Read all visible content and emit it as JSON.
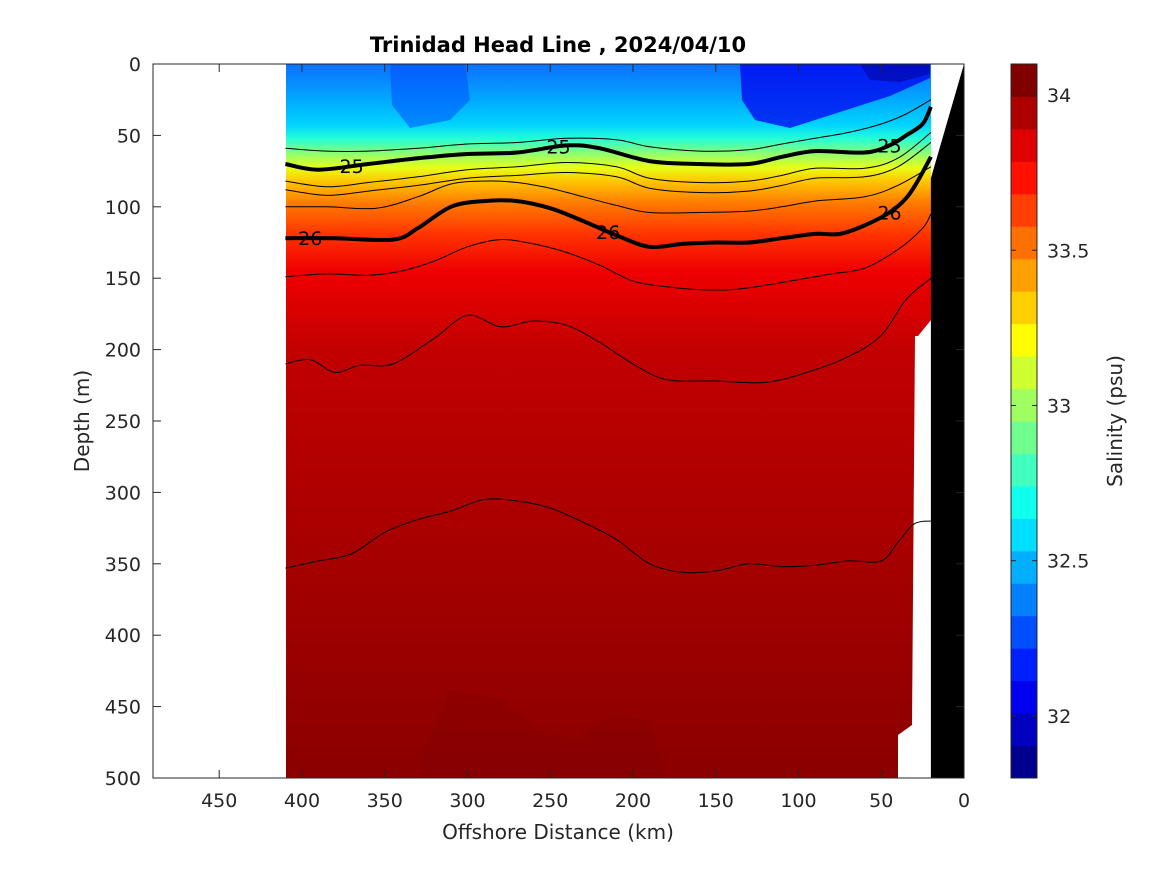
{
  "chart_data": {
    "type": "contour",
    "title": "Trinidad Head Line , 2024/04/10",
    "xlabel": "Offshore Distance (km)",
    "ylabel": "Depth (m)",
    "xlim": [
      490,
      0
    ],
    "ylim": [
      0,
      500
    ],
    "y_reversed": true,
    "xticks": [
      "450",
      "400",
      "350",
      "300",
      "250",
      "200",
      "150",
      "100",
      "50",
      "0"
    ],
    "yticks": [
      "0",
      "50",
      "100",
      "150",
      "200",
      "250",
      "300",
      "350",
      "400",
      "450",
      "500"
    ],
    "data_extent_km": [
      410,
      20
    ],
    "colorbar": {
      "label": "Salinity (psu)",
      "clim": [
        31.8,
        34.1
      ],
      "ticks": [
        "32",
        "32.5",
        "33",
        "33.5",
        "34"
      ]
    },
    "density_contours": [
      {
        "label": "25",
        "label_positions_km": [
          370,
          245,
          45
        ],
        "points": [
          [
            410,
            70
          ],
          [
            390,
            74
          ],
          [
            360,
            70
          ],
          [
            330,
            66
          ],
          [
            300,
            63
          ],
          [
            270,
            62
          ],
          [
            240,
            57
          ],
          [
            220,
            59
          ],
          [
            190,
            68
          ],
          [
            160,
            70
          ],
          [
            130,
            70
          ],
          [
            110,
            65
          ],
          [
            90,
            61
          ],
          [
            60,
            62
          ],
          [
            45,
            57
          ],
          [
            35,
            50
          ],
          [
            25,
            42
          ],
          [
            20,
            30
          ]
        ]
      },
      {
        "label": "26",
        "label_positions_km": [
          395,
          215,
          45
        ],
        "points": [
          [
            410,
            122
          ],
          [
            380,
            122
          ],
          [
            345,
            123
          ],
          [
            330,
            115
          ],
          [
            310,
            100
          ],
          [
            290,
            96
          ],
          [
            270,
            96
          ],
          [
            250,
            101
          ],
          [
            230,
            110
          ],
          [
            210,
            120
          ],
          [
            190,
            128
          ],
          [
            170,
            126
          ],
          [
            150,
            125
          ],
          [
            130,
            125
          ],
          [
            110,
            122
          ],
          [
            90,
            119
          ],
          [
            75,
            119
          ],
          [
            60,
            113
          ],
          [
            45,
            104
          ],
          [
            35,
            94
          ],
          [
            28,
            82
          ],
          [
            20,
            65
          ]
        ]
      }
    ],
    "thin_contours": [
      [
        [
          410,
          59
        ],
        [
          385,
          61
        ],
        [
          360,
          61
        ],
        [
          330,
          59
        ],
        [
          300,
          56
        ],
        [
          270,
          55
        ],
        [
          240,
          52
        ],
        [
          210,
          53
        ],
        [
          190,
          58
        ],
        [
          160,
          61
        ],
        [
          130,
          60
        ],
        [
          110,
          56
        ],
        [
          90,
          52
        ],
        [
          70,
          48
        ],
        [
          50,
          42
        ],
        [
          35,
          35
        ],
        [
          20,
          25
        ]
      ],
      [
        [
          410,
          82
        ],
        [
          385,
          86
        ],
        [
          360,
          83
        ],
        [
          330,
          79
        ],
        [
          300,
          74
        ],
        [
          270,
          72
        ],
        [
          240,
          69
        ],
        [
          210,
          72
        ],
        [
          190,
          80
        ],
        [
          160,
          83
        ],
        [
          130,
          82
        ],
        [
          110,
          78
        ],
        [
          90,
          73
        ],
        [
          60,
          73
        ],
        [
          40,
          66
        ],
        [
          20,
          48
        ]
      ],
      [
        [
          410,
          88
        ],
        [
          385,
          92
        ],
        [
          360,
          89
        ],
        [
          330,
          85
        ],
        [
          300,
          80
        ],
        [
          270,
          78
        ],
        [
          240,
          76
        ],
        [
          210,
          79
        ],
        [
          190,
          87
        ],
        [
          160,
          90
        ],
        [
          130,
          89
        ],
        [
          110,
          85
        ],
        [
          90,
          80
        ],
        [
          60,
          79
        ],
        [
          40,
          72
        ],
        [
          20,
          55
        ]
      ],
      [
        [
          410,
          100
        ],
        [
          385,
          100
        ],
        [
          355,
          101
        ],
        [
          330,
          93
        ],
        [
          310,
          84
        ],
        [
          290,
          82
        ],
        [
          270,
          83
        ],
        [
          250,
          87
        ],
        [
          230,
          93
        ],
        [
          210,
          99
        ],
        [
          190,
          104
        ],
        [
          160,
          104
        ],
        [
          130,
          103
        ],
        [
          110,
          100
        ],
        [
          90,
          96
        ],
        [
          60,
          93
        ],
        [
          40,
          85
        ],
        [
          20,
          72
        ]
      ],
      [
        [
          410,
          149
        ],
        [
          385,
          147
        ],
        [
          360,
          148
        ],
        [
          340,
          145
        ],
        [
          320,
          138
        ],
        [
          300,
          128
        ],
        [
          280,
          123
        ],
        [
          260,
          126
        ],
        [
          240,
          132
        ],
        [
          220,
          141
        ],
        [
          200,
          152
        ],
        [
          180,
          156
        ],
        [
          160,
          158
        ],
        [
          140,
          158
        ],
        [
          120,
          155
        ],
        [
          100,
          151
        ],
        [
          80,
          147
        ],
        [
          60,
          143
        ],
        [
          40,
          130
        ],
        [
          25,
          115
        ],
        [
          20,
          105
        ]
      ],
      [
        [
          410,
          210
        ],
        [
          395,
          207
        ],
        [
          380,
          216
        ],
        [
          365,
          211
        ],
        [
          345,
          210
        ],
        [
          320,
          192
        ],
        [
          300,
          176
        ],
        [
          280,
          184
        ],
        [
          260,
          180
        ],
        [
          240,
          183
        ],
        [
          220,
          195
        ],
        [
          200,
          210
        ],
        [
          180,
          221
        ],
        [
          150,
          222
        ],
        [
          120,
          223
        ],
        [
          95,
          216
        ],
        [
          70,
          205
        ],
        [
          50,
          190
        ],
        [
          35,
          165
        ],
        [
          20,
          150
        ]
      ],
      [
        [
          410,
          353
        ],
        [
          390,
          348
        ],
        [
          370,
          343
        ],
        [
          350,
          328
        ],
        [
          330,
          319
        ],
        [
          310,
          313
        ],
        [
          290,
          305
        ],
        [
          270,
          306
        ],
        [
          250,
          311
        ],
        [
          230,
          321
        ],
        [
          210,
          333
        ],
        [
          190,
          350
        ],
        [
          170,
          356
        ],
        [
          150,
          355
        ],
        [
          130,
          350
        ],
        [
          110,
          352
        ],
        [
          90,
          351
        ],
        [
          70,
          348
        ],
        [
          50,
          348
        ],
        [
          40,
          335
        ],
        [
          30,
          322
        ],
        [
          20,
          320
        ]
      ]
    ],
    "bathymetry_km_depth": [
      [
        20,
        500
      ],
      [
        20,
        80
      ],
      [
        0,
        0
      ],
      [
        0,
        500
      ]
    ]
  },
  "colors": {
    "colormap": [
      "#00008f",
      "#0000bf",
      "#0000ef",
      "#001fff",
      "#004fff",
      "#007fff",
      "#00afff",
      "#00dfff",
      "#10ffef",
      "#40ffbf",
      "#70ff8f",
      "#9fff60",
      "#cfff30",
      "#ffff00",
      "#ffcf00",
      "#ff9f00",
      "#ff7000",
      "#ff4000",
      "#ff1000",
      "#df0000",
      "#af0000",
      "#800000"
    ],
    "bathymetry": "#000000"
  }
}
